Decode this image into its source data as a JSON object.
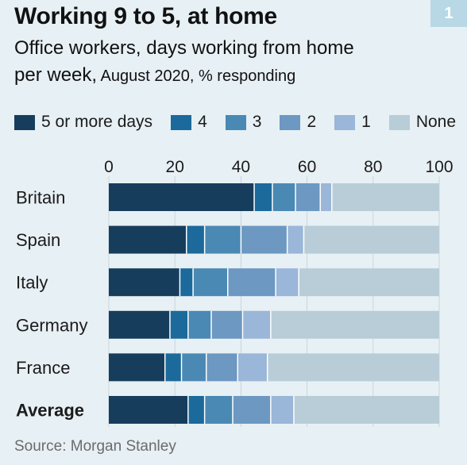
{
  "header": {
    "title": "Working 9 to 5, at home",
    "subtitle_line1": "Office workers, days working from home",
    "subtitle_line2_main": "per week,",
    "subtitle_line2_small": " August 2020, % responding",
    "badge": "1"
  },
  "legend": [
    {
      "label": "5 or more days",
      "color": "#173d5c"
    },
    {
      "label": "4",
      "color": "#1b6a9b"
    },
    {
      "label": "3",
      "color": "#4a89b4"
    },
    {
      "label": "2",
      "color": "#6c98c2"
    },
    {
      "label": "1",
      "color": "#9ab6d8"
    },
    {
      "label": "None",
      "color": "#b8cdd7"
    }
  ],
  "source": "Source: Morgan Stanley",
  "chart_data": {
    "type": "bar",
    "orientation": "horizontal",
    "stacked": true,
    "xlim": [
      0,
      100
    ],
    "xticks": [
      0,
      20,
      40,
      60,
      80,
      100
    ],
    "grid": true,
    "legend_position": "top",
    "categories": [
      "Britain",
      "Spain",
      "Italy",
      "Germany",
      "France",
      "Average"
    ],
    "bold_categories": [
      "Average"
    ],
    "series": [
      {
        "name": "5 or more days",
        "color": "#173d5c",
        "values": [
          44,
          23.5,
          21.5,
          18.5,
          17,
          24
        ]
      },
      {
        "name": "4",
        "color": "#1b6a9b",
        "values": [
          5.5,
          5.5,
          4,
          5.5,
          5,
          5
        ]
      },
      {
        "name": "3",
        "color": "#4a89b4",
        "values": [
          7,
          11,
          10.5,
          7,
          7.5,
          8.5
        ]
      },
      {
        "name": "2",
        "color": "#6c98c2",
        "values": [
          7.5,
          14,
          14.5,
          9.5,
          9.5,
          11.5
        ]
      },
      {
        "name": "1",
        "color": "#9ab6d8",
        "values": [
          3.5,
          5,
          7,
          8.5,
          9,
          7
        ]
      },
      {
        "name": "None",
        "color": "#b8cdd7",
        "values": [
          32.5,
          41,
          42.5,
          51,
          52,
          44
        ]
      }
    ]
  }
}
